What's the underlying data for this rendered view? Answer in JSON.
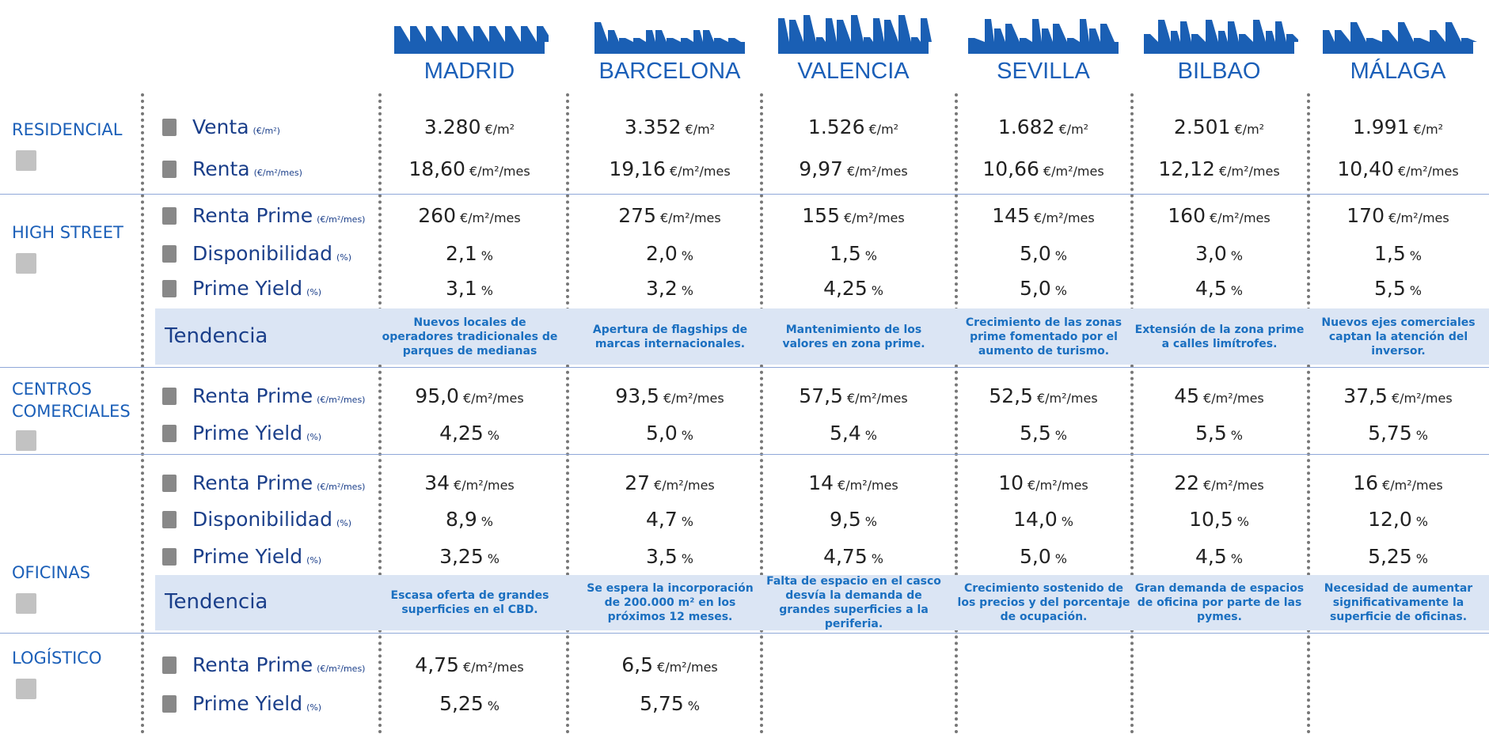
{
  "cities": [
    "MADRID",
    "BARCELONA",
    "VALENCIA",
    "SEVILLA",
    "BILBAO",
    "MÁLAGA"
  ],
  "sections": [
    {
      "name": "RESIDENCIAL",
      "rows": [
        {
          "label": "Venta",
          "unit": "(€/m²)",
          "cells": [
            [
              "3.280",
              "€/m²"
            ],
            [
              "3.352",
              "€/m²"
            ],
            [
              "1.526",
              "€/m²"
            ],
            [
              "1.682",
              "€/m²"
            ],
            [
              "2.501",
              "€/m²"
            ],
            [
              "1.991",
              "€/m²"
            ]
          ]
        },
        {
          "label": "Renta",
          "unit": "(€/m²/mes)",
          "cells": [
            [
              "18,60",
              "€/m²/mes"
            ],
            [
              "19,16",
              "€/m²/mes"
            ],
            [
              "9,97",
              "€/m²/mes"
            ],
            [
              "10,66",
              "€/m²/mes"
            ],
            [
              "12,12",
              "€/m²/mes"
            ],
            [
              "10,40",
              "€/m²/mes"
            ]
          ]
        }
      ]
    },
    {
      "name": "HIGH STREET",
      "rows": [
        {
          "label": "Renta Prime",
          "unit": "(€/m²/mes)",
          "cells": [
            [
              "260",
              "€/m²/mes"
            ],
            [
              "275",
              "€/m²/mes"
            ],
            [
              "155",
              "€/m²/mes"
            ],
            [
              "145",
              "€/m²/mes"
            ],
            [
              "160",
              "€/m²/mes"
            ],
            [
              "170",
              "€/m²/mes"
            ]
          ]
        },
        {
          "label": "Disponibilidad",
          "unit": "(%)",
          "cells": [
            [
              "2,1",
              "%"
            ],
            [
              "2,0",
              "%"
            ],
            [
              "1,5",
              "%"
            ],
            [
              "5,0",
              "%"
            ],
            [
              "3,0",
              "%"
            ],
            [
              "1,5",
              "%"
            ]
          ]
        },
        {
          "label": "Prime Yield",
          "unit": "(%)",
          "cells": [
            [
              "3,1",
              "%"
            ],
            [
              "3,2",
              "%"
            ],
            [
              "4,25",
              "%"
            ],
            [
              "5,0",
              "%"
            ],
            [
              "4,5",
              "%"
            ],
            [
              "5,5",
              "%"
            ]
          ]
        }
      ],
      "trend": {
        "label": "Tendencia",
        "texts": [
          "Nuevos locales de operadores tradicionales de parques de medianas",
          "Apertura de flagships de marcas internacionales.",
          "Mantenimiento de los valores en zona prime.",
          "Crecimiento de las zonas prime fomentado por el aumento de turismo.",
          "Extensión de la zona prime a calles limítrofes.",
          "Nuevos ejes comerciales captan la atención del inversor."
        ]
      }
    },
    {
      "name": "CENTROS COMERCIALES",
      "rows": [
        {
          "label": "Renta Prime",
          "unit": "(€/m²/mes)",
          "cells": [
            [
              "95,0",
              "€/m²/mes"
            ],
            [
              "93,5",
              "€/m²/mes"
            ],
            [
              "57,5",
              "€/m²/mes"
            ],
            [
              "52,5",
              "€/m²/mes"
            ],
            [
              "45",
              "€/m²/mes"
            ],
            [
              "37,5",
              "€/m²/mes"
            ]
          ]
        },
        {
          "label": "Prime Yield",
          "unit": "(%)",
          "cells": [
            [
              "4,25",
              "%"
            ],
            [
              "5,0",
              "%"
            ],
            [
              "5,4",
              "%"
            ],
            [
              "5,5",
              "%"
            ],
            [
              "5,5",
              "%"
            ],
            [
              "5,75",
              "%"
            ]
          ]
        }
      ]
    },
    {
      "name": "OFICINAS",
      "rows": [
        {
          "label": "Renta Prime",
          "unit": "(€/m²/mes)",
          "cells": [
            [
              "34",
              "€/m²/mes"
            ],
            [
              "27",
              "€/m²/mes"
            ],
            [
              "14",
              "€/m²/mes"
            ],
            [
              "10",
              "€/m²/mes"
            ],
            [
              "22",
              "€/m²/mes"
            ],
            [
              "16",
              "€/m²/mes"
            ]
          ]
        },
        {
          "label": "Disponibilidad",
          "unit": "(%)",
          "cells": [
            [
              "8,9",
              "%"
            ],
            [
              "4,7",
              "%"
            ],
            [
              "9,5",
              "%"
            ],
            [
              "14,0",
              "%"
            ],
            [
              "10,5",
              "%"
            ],
            [
              "12,0",
              "%"
            ]
          ]
        },
        {
          "label": "Prime Yield",
          "unit": "(%)",
          "cells": [
            [
              "3,25",
              "%"
            ],
            [
              "3,5",
              "%"
            ],
            [
              "4,75",
              "%"
            ],
            [
              "5,0",
              "%"
            ],
            [
              "4,5",
              "%"
            ],
            [
              "5,25",
              "%"
            ]
          ]
        }
      ],
      "trend": {
        "label": "Tendencia",
        "texts": [
          "Escasa oferta de grandes superficies en el CBD.",
          "Se espera la incorporación de 200.000 m² en los próximos 12 meses.",
          "Falta de espacio en el casco desvía la demanda de grandes superficies a la periferia.",
          "Crecimiento sostenido de los precios y del porcentaje de ocupación.",
          "Gran demanda de espacios de oficina por parte de las pymes.",
          "Necesidad de aumentar significativamente la superficie de oficinas."
        ]
      }
    },
    {
      "name": "LOGÍSTICO",
      "rows": [
        {
          "label": "Renta Prime",
          "unit": "(€/m²/mes)",
          "cells": [
            [
              "4,75",
              "€/m²/mes"
            ],
            [
              "6,5",
              "€/m²/mes"
            ]
          ]
        },
        {
          "label": "Prime Yield",
          "unit": "(%)",
          "cells": [
            [
              "5,25",
              "%"
            ],
            [
              "5,75",
              "%"
            ]
          ]
        }
      ]
    }
  ]
}
